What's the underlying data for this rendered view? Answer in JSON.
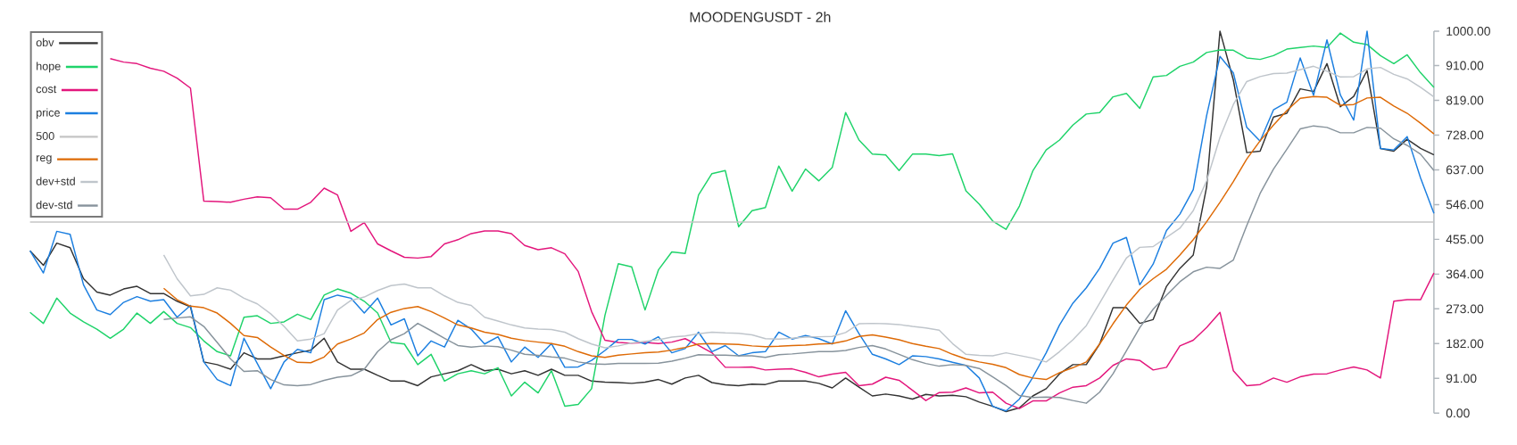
{
  "chart_data": {
    "type": "line",
    "title": "MOODENGUSDT - 2h",
    "categories": [
      null,
      null,
      null,
      null,
      null,
      null,
      null,
      null,
      null,
      null,
      null,
      null,
      null,
      null,
      null,
      null,
      null,
      null,
      null,
      null,
      null,
      null,
      null,
      null,
      null,
      null,
      null,
      null,
      null,
      null,
      null,
      null,
      null,
      null,
      null,
      null,
      null,
      null,
      null,
      null,
      null,
      null,
      null,
      null,
      null,
      null,
      null,
      null,
      null,
      null,
      null,
      null,
      null,
      null,
      null,
      null,
      null,
      null,
      null,
      null,
      null,
      null,
      null,
      null,
      null,
      null,
      null,
      null,
      null,
      null,
      null,
      null,
      null,
      null,
      null,
      null,
      null,
      null,
      null,
      null,
      null,
      null,
      null,
      null,
      null,
      null,
      null,
      null,
      null,
      null,
      null,
      null,
      null,
      null,
      null,
      null,
      null,
      null,
      null,
      null,
      null,
      null,
      null,
      null,
      null,
      null
    ],
    "ylim": [
      0,
      1000
    ],
    "yticks": [
      {
        "value": 0,
        "label": "0.00"
      },
      {
        "value": 91,
        "label": "91.00"
      },
      {
        "value": 182,
        "label": "182.00"
      },
      {
        "value": 273,
        "label": "273.00"
      },
      {
        "value": 364,
        "label": "364.00"
      },
      {
        "value": 455,
        "label": "455.00"
      },
      {
        "value": 546,
        "label": "546.00"
      },
      {
        "value": 637,
        "label": "637.00"
      },
      {
        "value": 728,
        "label": "728.00"
      },
      {
        "value": 819,
        "label": "819.00"
      },
      {
        "value": 910,
        "label": "910.00"
      },
      {
        "value": 1000,
        "label": "1000.00"
      }
    ],
    "tick_labels": "y",
    "legend": "top left",
    "series": [
      {
        "name": "obv",
        "color": "#333333",
        "values": [
          425,
          387,
          445,
          433,
          352,
          317,
          309,
          325,
          332,
          313,
          313,
          293,
          278,
          134,
          127,
          115,
          158,
          142,
          142,
          150,
          158,
          165,
          196,
          134,
          115,
          115,
          99,
          84,
          84,
          72,
          95,
          103,
          111,
          127,
          111,
          115,
          103,
          111,
          99,
          115,
          99,
          99,
          84,
          81,
          80,
          78,
          81,
          88,
          76,
          92,
          99,
          80,
          74,
          72,
          76,
          75,
          84,
          84,
          84,
          78,
          66,
          92,
          68,
          45,
          50,
          45,
          37,
          49,
          45,
          47,
          43,
          29,
          18,
          4,
          14,
          45,
          64,
          103,
          127,
          127,
          181,
          276,
          276,
          235,
          245,
          332,
          379,
          414,
          592,
          1000,
          872,
          682,
          686,
          775,
          785,
          849,
          842,
          915,
          802,
          829,
          897,
          693,
          686,
          717,
          693,
          676
        ]
      },
      {
        "name": "hope",
        "color": "#1fd36a",
        "values": [
          264,
          235,
          301,
          262,
          239,
          220,
          196,
          220,
          262,
          235,
          266,
          235,
          224,
          189,
          161,
          150,
          251,
          255,
          235,
          239,
          259,
          245,
          309,
          325,
          314,
          293,
          262,
          185,
          181,
          127,
          154,
          84,
          103,
          111,
          103,
          119,
          45,
          81,
          53,
          111,
          18,
          23,
          64,
          256,
          391,
          383,
          270,
          375,
          422,
          418,
          571,
          627,
          635,
          488,
          530,
          538,
          647,
          581,
          639,
          608,
          643,
          787,
          715,
          678,
          676,
          635,
          678,
          678,
          674,
          679,
          582,
          547,
          503,
          481,
          542,
          634,
          689,
          715,
          754,
          783,
          787,
          828,
          837,
          798,
          880,
          884,
          908,
          919,
          944,
          951,
          950,
          930,
          926,
          936,
          953,
          957,
          961,
          957,
          995,
          971,
          965,
          936,
          915,
          938,
          891,
          853
        ]
      },
      {
        "name": "cost",
        "color": "#e3167c",
        "values": [
          null,
          null,
          null,
          null,
          null,
          null,
          928,
          919,
          915,
          903,
          895,
          877,
          851,
          555,
          554,
          552,
          560,
          566,
          564,
          534,
          534,
          552,
          589,
          571,
          476,
          499,
          443,
          425,
          408,
          406,
          410,
          443,
          454,
          470,
          477,
          477,
          470,
          439,
          428,
          433,
          417,
          371,
          266,
          191,
          185,
          183,
          185,
          182,
          186,
          195,
          177,
          158,
          120,
          120,
          121,
          113,
          115,
          116,
          107,
          95,
          102,
          107,
          72,
          76,
          94,
          86,
          60,
          33,
          54,
          55,
          66,
          53,
          55,
          26,
          12,
          32,
          32,
          53,
          68,
          72,
          92,
          125,
          142,
          138,
          113,
          120,
          176,
          191,
          224,
          264,
          111,
          72,
          75,
          92,
          81,
          95,
          102,
          103,
          113,
          121,
          113,
          92,
          293,
          297,
          297,
          367
        ]
      },
      {
        "name": "price",
        "color": "#1c7fe0",
        "values": [
          425,
          367,
          476,
          468,
          336,
          270,
          258,
          290,
          305,
          293,
          297,
          251,
          282,
          134,
          88,
          72,
          196,
          130,
          64,
          134,
          167,
          158,
          297,
          309,
          301,
          262,
          301,
          231,
          247,
          150,
          189,
          173,
          243,
          220,
          181,
          200,
          134,
          173,
          146,
          182,
          120,
          121,
          138,
          164,
          193,
          193,
          181,
          200,
          158,
          169,
          212,
          161,
          177,
          150,
          158,
          161,
          212,
          194,
          203,
          195,
          181,
          268,
          208,
          154,
          142,
          127,
          150,
          148,
          142,
          133,
          125,
          92,
          18,
          6,
          37,
          94,
          158,
          231,
          288,
          328,
          379,
          445,
          460,
          336,
          390,
          478,
          521,
          585,
          779,
          934,
          891,
          748,
          712,
          794,
          814,
          930,
          832,
          977,
          833,
          767,
          1000,
          693,
          689,
          724,
          616,
          523
        ]
      },
      {
        "name": "500",
        "color": "#c4c4c4",
        "values": [
          500,
          500,
          500,
          500,
          500,
          500,
          500,
          500,
          500,
          500,
          500,
          500,
          500,
          500,
          500,
          500,
          500,
          500,
          500,
          500,
          500,
          500,
          500,
          500,
          500,
          500,
          500,
          500,
          500,
          500,
          500,
          500,
          500,
          500,
          500,
          500,
          500,
          500,
          500,
          500,
          500,
          500,
          500,
          500,
          500,
          500,
          500,
          500,
          500,
          500,
          500,
          500,
          500,
          500,
          500,
          500,
          500,
          500,
          500,
          500,
          500,
          500,
          500,
          500,
          500,
          500,
          500,
          500,
          500,
          500,
          500,
          500,
          500,
          500,
          500,
          500,
          500,
          500,
          500,
          500,
          500,
          500,
          500,
          500,
          500,
          500,
          500,
          500,
          500,
          500,
          500,
          500,
          500,
          500,
          500,
          500,
          500,
          500,
          500,
          500,
          500,
          500,
          500,
          500,
          500,
          500
        ]
      },
      {
        "name": "reg",
        "color": "#de6a06",
        "values": [
          null,
          null,
          null,
          null,
          null,
          null,
          null,
          null,
          null,
          null,
          327,
          297,
          280,
          276,
          262,
          235,
          203,
          198,
          173,
          151,
          133,
          132,
          147,
          181,
          194,
          210,
          245,
          264,
          274,
          279,
          266,
          249,
          231,
          223,
          212,
          206,
          196,
          190,
          186,
          182,
          175,
          161,
          150,
          146,
          152,
          155,
          158,
          160,
          165,
          172,
          181,
          182,
          181,
          180,
          176,
          174,
          175,
          177,
          178,
          181,
          182,
          189,
          201,
          205,
          199,
          192,
          182,
          175,
          169,
          154,
          142,
          134,
          128,
          119,
          101,
          92,
          88,
          106,
          119,
          134,
          181,
          234,
          283,
          324,
          352,
          377,
          414,
          454,
          501,
          552,
          606,
          665,
          713,
          754,
          792,
          824,
          829,
          827,
          806,
          808,
          825,
          827,
          804,
          785,
          759,
          731
        ]
      },
      {
        "name": "dev+std",
        "color": "#bfc5cb",
        "values": [
          null,
          null,
          null,
          null,
          null,
          null,
          null,
          null,
          null,
          null,
          414,
          352,
          307,
          311,
          328,
          322,
          301,
          286,
          260,
          227,
          189,
          194,
          208,
          270,
          295,
          304,
          321,
          334,
          338,
          328,
          328,
          307,
          290,
          282,
          251,
          241,
          231,
          223,
          220,
          219,
          212,
          195,
          181,
          171,
          176,
          184,
          188,
          192,
          199,
          202,
          208,
          212,
          210,
          209,
          205,
          195,
          194,
          196,
          199,
          200,
          201,
          211,
          234,
          235,
          234,
          232,
          227,
          223,
          217,
          182,
          154,
          151,
          150,
          158,
          151,
          144,
          134,
          161,
          192,
          229,
          288,
          348,
          406,
          434,
          436,
          460,
          484,
          530,
          608,
          722,
          808,
          868,
          881,
          889,
          890,
          899,
          908,
          895,
          880,
          881,
          901,
          905,
          887,
          875,
          853,
          828
        ]
      },
      {
        "name": "dev-std",
        "color": "#87939c",
        "values": [
          null,
          null,
          null,
          null,
          null,
          null,
          null,
          null,
          null,
          null,
          245,
          249,
          252,
          227,
          185,
          142,
          109,
          111,
          88,
          74,
          72,
          75,
          86,
          94,
          98,
          115,
          161,
          192,
          208,
          235,
          216,
          196,
          177,
          173,
          176,
          174,
          165,
          154,
          151,
          147,
          144,
          134,
          129,
          128,
          130,
          130,
          130,
          131,
          136,
          144,
          153,
          152,
          152,
          150,
          150,
          146,
          153,
          155,
          158,
          161,
          161,
          164,
          172,
          177,
          168,
          154,
          140,
          130,
          123,
          127,
          125,
          117,
          95,
          72,
          46,
          41,
          42,
          41,
          33,
          26,
          55,
          103,
          163,
          224,
          272,
          309,
          344,
          370,
          382,
          379,
          401,
          491,
          575,
          639,
          691,
          744,
          752,
          748,
          734,
          734,
          748,
          746,
          718,
          701,
          678,
          635
        ]
      }
    ]
  }
}
